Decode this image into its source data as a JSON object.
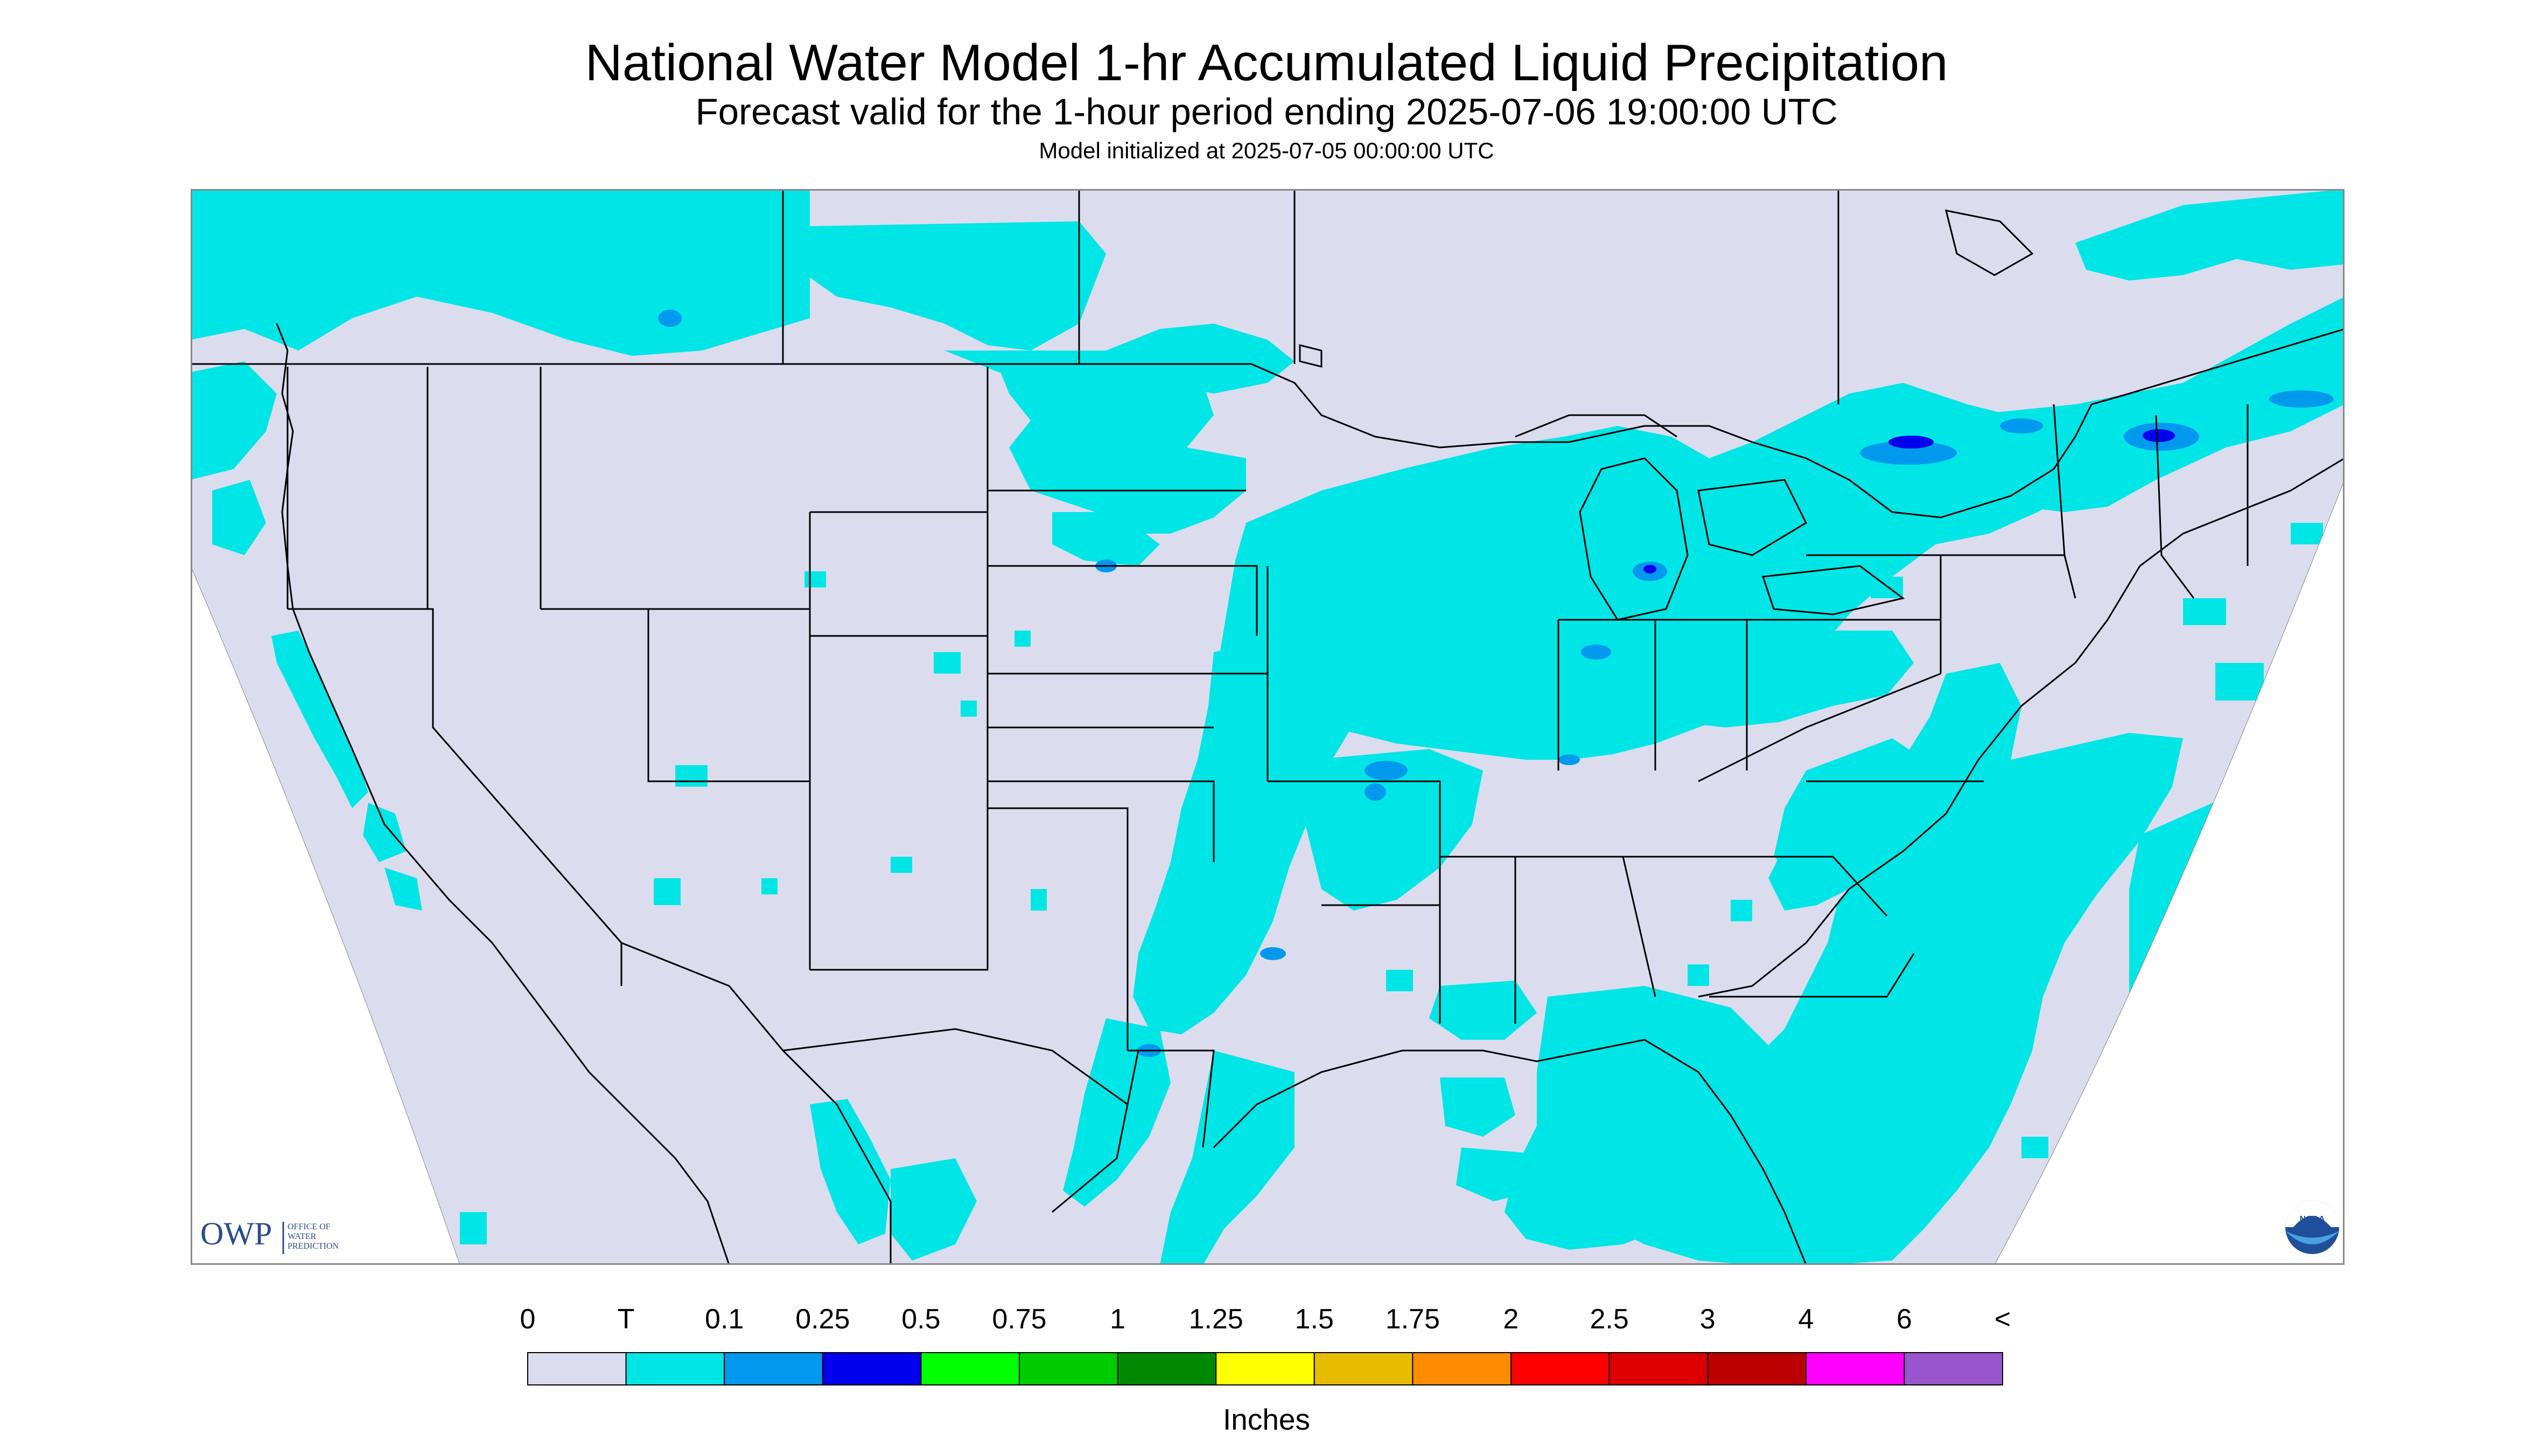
{
  "header": {
    "title": "National Water Model 1-hr Accumulated Liquid Precipitation",
    "subtitle": "Forecast valid for the 1-hour period ending 2025-07-06 19:00:00 UTC",
    "init": "Model initialized at 2025-07-05 00:00:00 UTC"
  },
  "map": {
    "background_color": "#dcdcef",
    "outside_color": "#ffffff",
    "border_color": "#000000",
    "light_precip_color": "#00e6e6",
    "heavier_precip_color": "#0099ee",
    "heaviest_precip_color": "#0000ee"
  },
  "logos": {
    "owp_text": "OWP",
    "owp_line1": "OFFICE OF",
    "owp_line2": "WATER",
    "owp_line3": "PREDICTION",
    "noaa_text": "NOAA"
  },
  "legend": {
    "labels": [
      "0",
      "T",
      "0.1",
      "0.25",
      "0.5",
      "0.75",
      "1",
      "1.25",
      "1.5",
      "1.75",
      "2",
      "2.5",
      "3",
      "4",
      "6",
      "<"
    ],
    "colors": [
      "#dcdcef",
      "#00e6e6",
      "#0099ee",
      "#0000ee",
      "#00ff00",
      "#00cc00",
      "#008800",
      "#ffff00",
      "#e6bb00",
      "#ff8c00",
      "#ff0000",
      "#dd0000",
      "#bb0000",
      "#ff00ff",
      "#9955cc"
    ],
    "units": "Inches"
  }
}
